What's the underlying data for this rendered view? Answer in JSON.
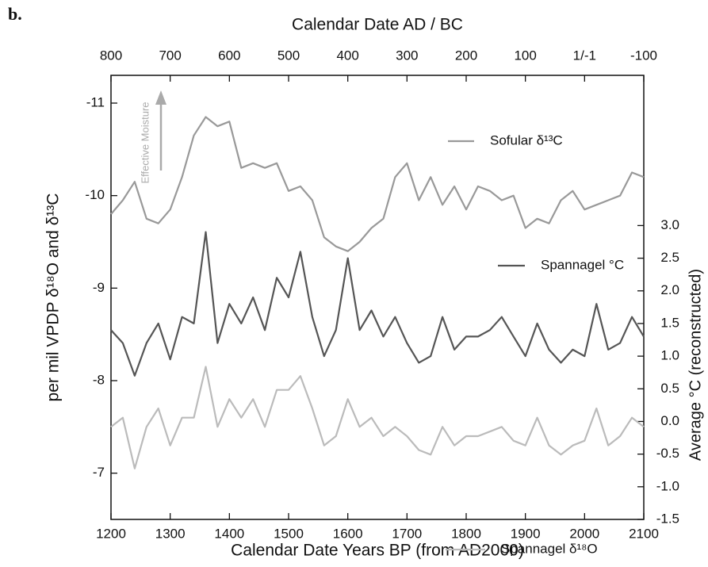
{
  "chart_data": {
    "type": "line",
    "panel_label": "b.",
    "annotation": "Effective Moisture",
    "x_title": "Calendar Date Years BP (from AD2000)",
    "x2_title": "Calendar Date AD / BC",
    "y_title": "per mil VPDP δ¹⁸O and δ¹³C",
    "y2_title": "Average °C (reconstructed)",
    "xlim": [
      1200,
      2100
    ],
    "xticks": [
      1200,
      1300,
      1400,
      1500,
      1600,
      1700,
      1800,
      1900,
      2000,
      2100
    ],
    "x2lim": [
      800,
      -100
    ],
    "x2ticks": [
      800,
      700,
      600,
      500,
      400,
      300,
      200,
      100,
      {
        "value": 0,
        "label": "1/-1"
      },
      -100
    ],
    "ylim": [
      -6.5,
      -11.3
    ],
    "yticks": [
      -11,
      -10,
      -9,
      -8,
      -7
    ],
    "y2lim": [
      -1.5,
      5.3
    ],
    "y2ticks": [
      {
        "value": 3,
        "label": "3.0"
      },
      2.5,
      {
        "value": 2,
        "label": "2.0"
      },
      1.5,
      {
        "value": 1,
        "label": "1.0"
      },
      0.5,
      {
        "value": 0,
        "label": "0.0"
      },
      -0.5,
      {
        "value": -1,
        "label": "-1.0"
      },
      -1.5
    ],
    "grid": false,
    "x": [
      1200,
      1220,
      1240,
      1260,
      1280,
      1300,
      1320,
      1340,
      1360,
      1380,
      1400,
      1420,
      1440,
      1460,
      1480,
      1500,
      1520,
      1540,
      1560,
      1580,
      1600,
      1620,
      1640,
      1660,
      1680,
      1700,
      1720,
      1740,
      1760,
      1780,
      1800,
      1820,
      1840,
      1860,
      1880,
      1900,
      1920,
      1940,
      1960,
      1980,
      2000,
      2020,
      2040,
      2060,
      2080,
      2100
    ],
    "series": [
      {
        "name": "Sofular δ¹³C",
        "color": "#999999",
        "values": [
          -9.8,
          -9.95,
          -10.15,
          -9.75,
          -9.7,
          -9.85,
          -10.2,
          -10.65,
          -10.85,
          -10.75,
          -10.8,
          -10.3,
          -10.35,
          -10.3,
          -10.35,
          -10.05,
          -10.1,
          -9.95,
          -9.55,
          -9.45,
          -9.4,
          -9.5,
          -9.65,
          -9.75,
          -10.2,
          -10.35,
          -9.95,
          -10.2,
          -9.9,
          -10.1,
          -9.85,
          -10.1,
          -10.05,
          -9.95,
          -10.0,
          -9.65,
          -9.75,
          -9.7,
          -9.95,
          -10.05,
          -9.85,
          -9.9,
          -9.95,
          -10.0,
          -10.25,
          -10.2
        ]
      },
      {
        "name": "Spannagel °C",
        "color": "#555555",
        "axis": "y2",
        "values": [
          1.4,
          1.2,
          0.7,
          1.2,
          1.5,
          0.95,
          1.6,
          1.5,
          2.9,
          1.2,
          1.8,
          1.5,
          1.9,
          1.4,
          2.2,
          1.9,
          2.6,
          1.6,
          1.0,
          1.4,
          2.5,
          1.4,
          1.7,
          1.3,
          1.6,
          1.2,
          0.9,
          1.0,
          1.6,
          1.1,
          1.3,
          1.3,
          1.4,
          1.6,
          1.3,
          1.0,
          1.5,
          1.1,
          0.9,
          1.1,
          1.0,
          1.8,
          1.1,
          1.2,
          1.6,
          1.3
        ]
      },
      {
        "name": "Spannagel δ¹⁸O",
        "color": "#bbbbbb",
        "values": [
          -7.5,
          -7.6,
          -7.05,
          -7.5,
          -7.7,
          -7.3,
          -7.6,
          -7.6,
          -8.15,
          -7.5,
          -7.8,
          -7.6,
          -7.8,
          -7.5,
          -7.9,
          -7.9,
          -8.05,
          -7.7,
          -7.3,
          -7.4,
          -7.8,
          -7.5,
          -7.6,
          -7.4,
          -7.5,
          -7.4,
          -7.25,
          -7.2,
          -7.5,
          -7.3,
          -7.4,
          -7.4,
          -7.45,
          -7.5,
          -7.35,
          -7.3,
          -7.6,
          -7.3,
          -7.2,
          -7.3,
          -7.35,
          -7.7,
          -7.3,
          -7.4,
          -7.6,
          -7.5
        ]
      }
    ]
  }
}
